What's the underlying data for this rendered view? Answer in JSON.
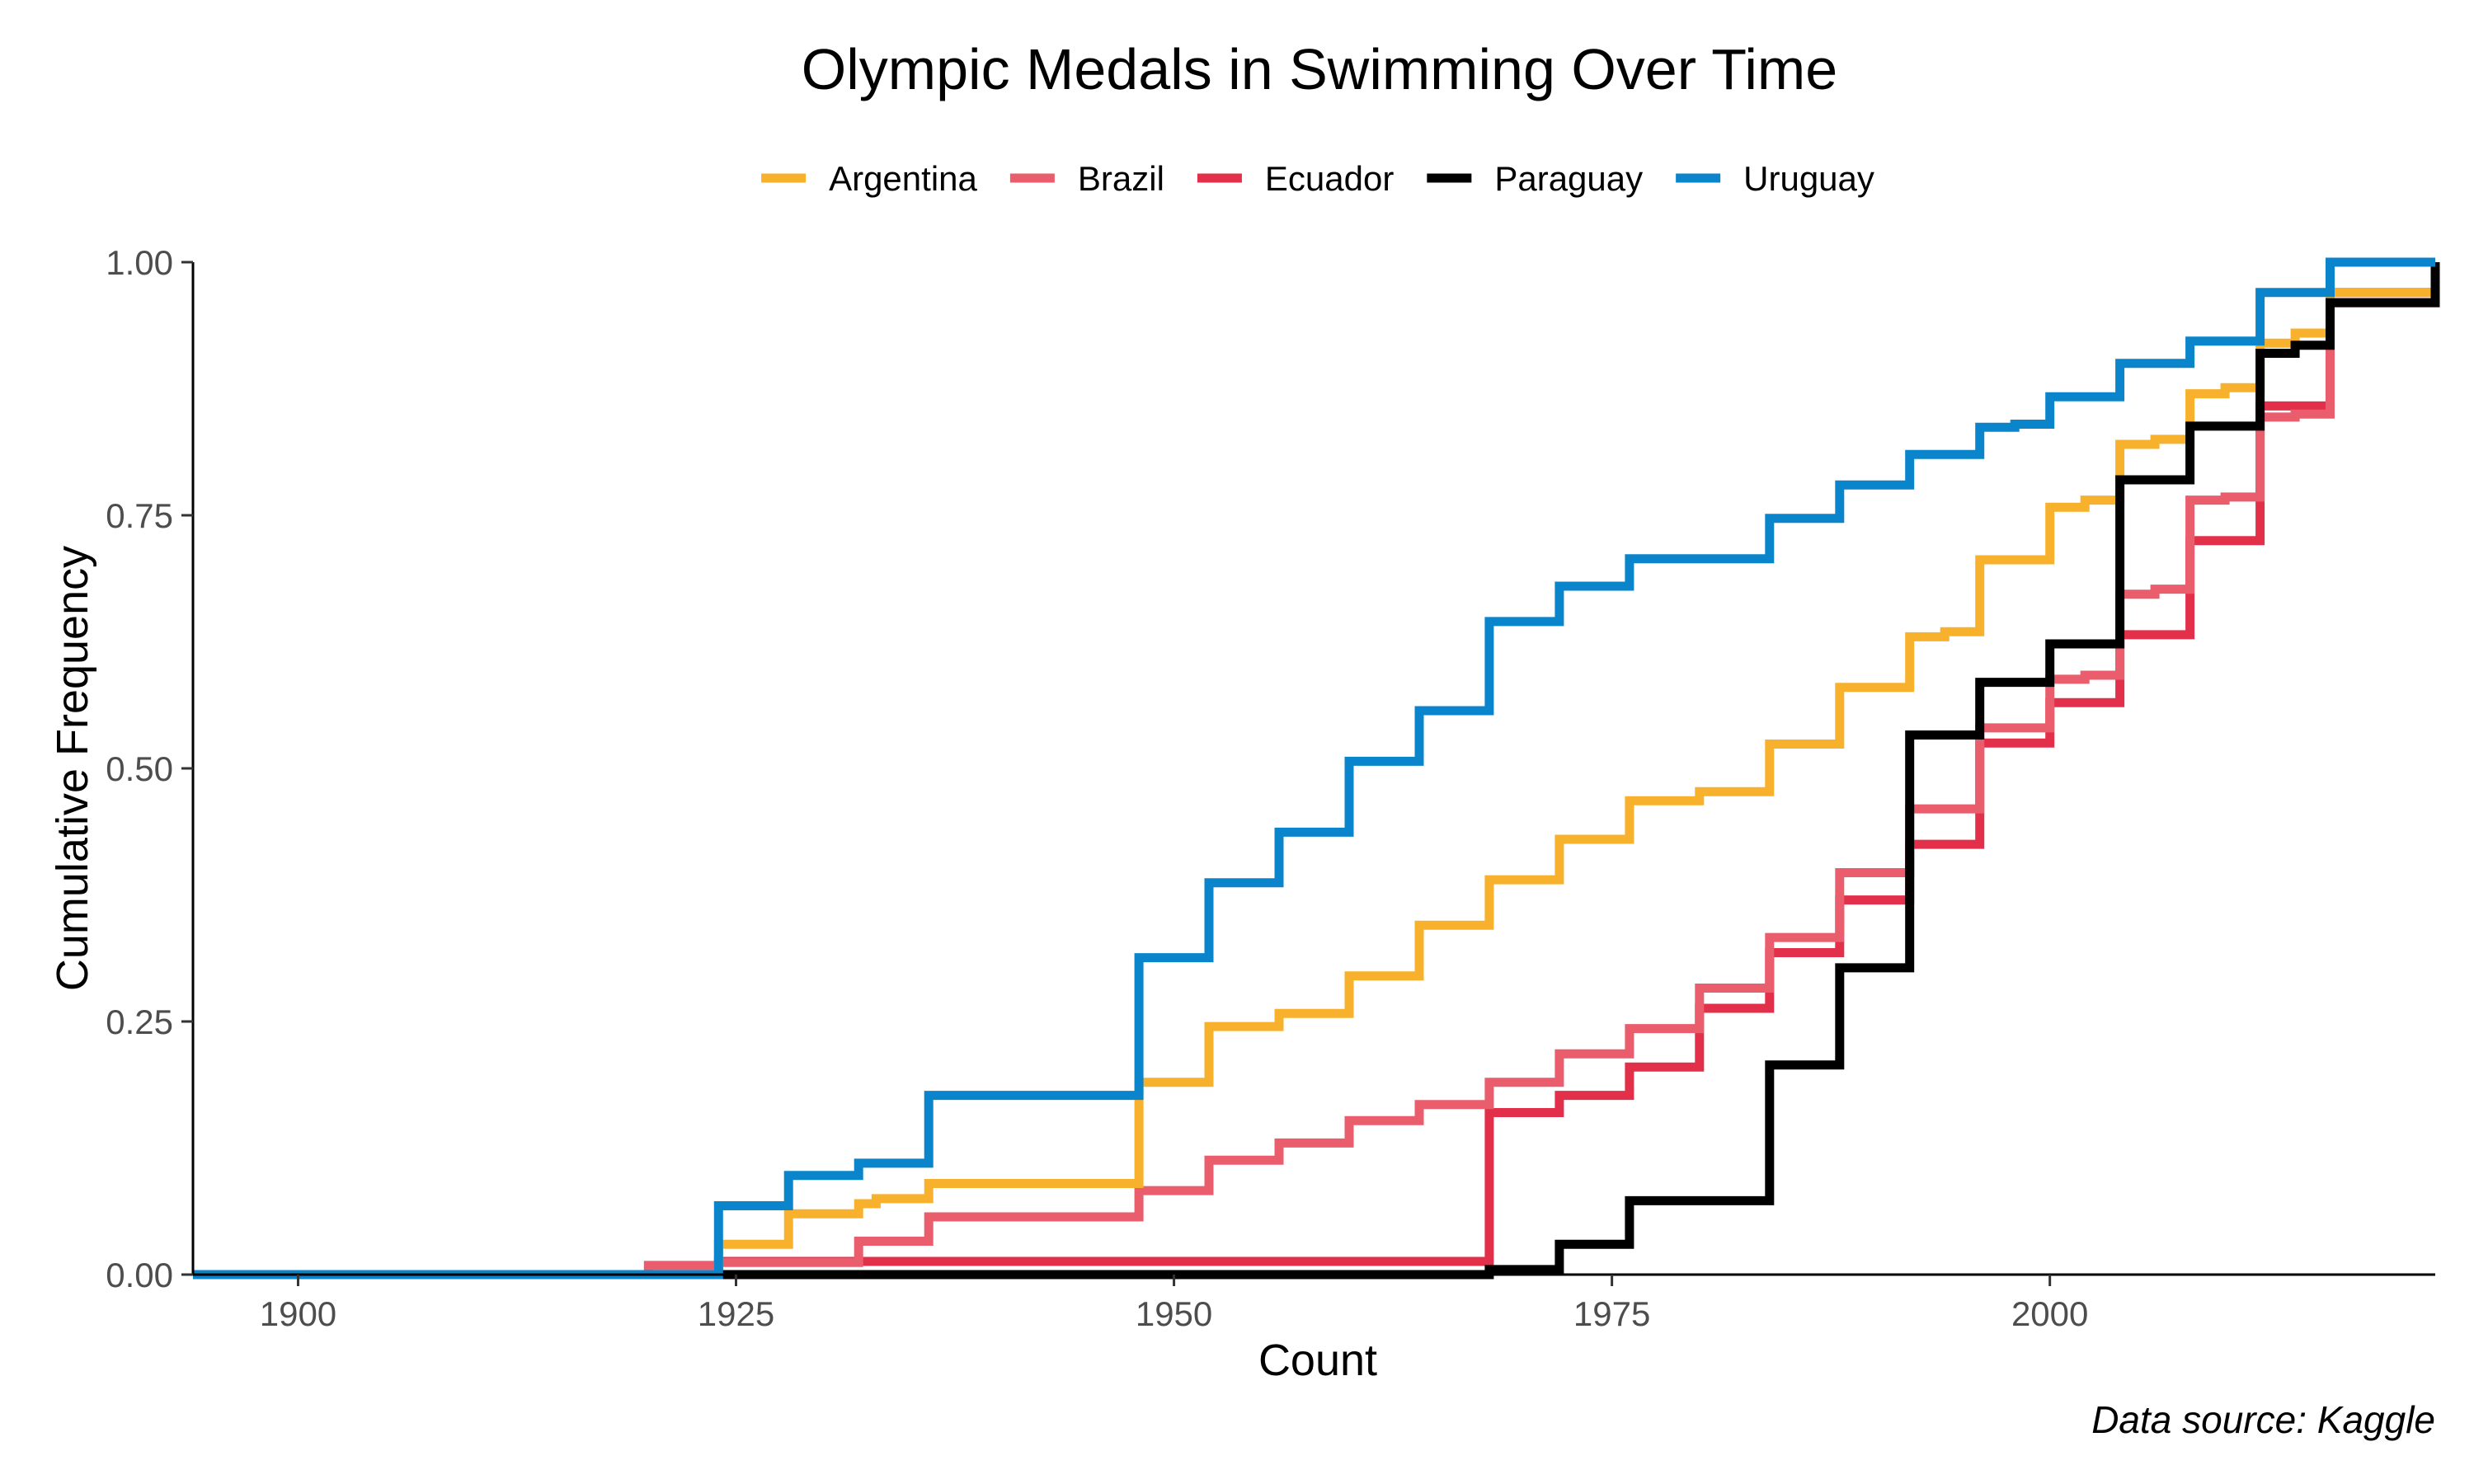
{
  "chart_data": {
    "type": "line",
    "step": true,
    "title": "Olympic Medals in Swimming Over Time",
    "xlabel": "Count",
    "ylabel": "Cumulative Frequency",
    "caption": "Data source: Kaggle",
    "xlim": [
      1894,
      2022
    ],
    "ylim": [
      0,
      1
    ],
    "x_ticks": [
      1900,
      1925,
      1950,
      1975,
      2000
    ],
    "x_tick_labels": [
      "1900",
      "1925",
      "1950",
      "1975",
      "2000"
    ],
    "y_ticks": [
      0,
      0.25,
      0.5,
      0.75,
      1
    ],
    "y_tick_labels": [
      "0.00",
      "0.25",
      "0.50",
      "0.75",
      "1.00"
    ],
    "grid": false,
    "legend_position": "top",
    "series": [
      {
        "name": "Argentina",
        "color": "#F8B12C",
        "points": [
          [
            1894,
            0
          ],
          [
            1924,
            0.03
          ],
          [
            1928,
            0.06
          ],
          [
            1932,
            0.07
          ],
          [
            1933,
            0.075
          ],
          [
            1936,
            0.09
          ],
          [
            1948,
            0.19
          ],
          [
            1952,
            0.245
          ],
          [
            1956,
            0.258
          ],
          [
            1960,
            0.295
          ],
          [
            1964,
            0.345
          ],
          [
            1968,
            0.39
          ],
          [
            1972,
            0.43
          ],
          [
            1976,
            0.468
          ],
          [
            1980,
            0.477
          ],
          [
            1984,
            0.524
          ],
          [
            1988,
            0.58
          ],
          [
            1992,
            0.63
          ],
          [
            1994,
            0.635
          ],
          [
            1996,
            0.706
          ],
          [
            2000,
            0.758
          ],
          [
            2002,
            0.765
          ],
          [
            2004,
            0.82
          ],
          [
            2006,
            0.825
          ],
          [
            2008,
            0.87
          ],
          [
            2010,
            0.876
          ],
          [
            2012,
            0.92
          ],
          [
            2014,
            0.93
          ],
          [
            2016,
            0.97
          ],
          [
            2022,
            1.0
          ]
        ]
      },
      {
        "name": "Brazil",
        "color": "#EA5D6D",
        "points": [
          [
            1894,
            0
          ],
          [
            1920,
            0.009
          ],
          [
            1924,
            0.012
          ],
          [
            1932,
            0.033
          ],
          [
            1936,
            0.057
          ],
          [
            1948,
            0.083
          ],
          [
            1952,
            0.113
          ],
          [
            1956,
            0.13
          ],
          [
            1960,
            0.152
          ],
          [
            1964,
            0.168
          ],
          [
            1968,
            0.19
          ],
          [
            1972,
            0.218
          ],
          [
            1976,
            0.243
          ],
          [
            1980,
            0.283
          ],
          [
            1984,
            0.333
          ],
          [
            1988,
            0.397
          ],
          [
            1992,
            0.46
          ],
          [
            1996,
            0.54
          ],
          [
            2000,
            0.588
          ],
          [
            2002,
            0.592
          ],
          [
            2004,
            0.672
          ],
          [
            2006,
            0.677
          ],
          [
            2008,
            0.765
          ],
          [
            2010,
            0.768
          ],
          [
            2012,
            0.847
          ],
          [
            2014,
            0.85
          ],
          [
            2016,
            0.96
          ],
          [
            2022,
            1.0
          ]
        ]
      },
      {
        "name": "Ecuador",
        "color": "#E3304A",
        "points": [
          [
            1894,
            0
          ],
          [
            1924,
            0.013
          ],
          [
            1968,
            0.16
          ],
          [
            1972,
            0.177
          ],
          [
            1976,
            0.205
          ],
          [
            1980,
            0.263
          ],
          [
            1984,
            0.318
          ],
          [
            1988,
            0.37
          ],
          [
            1992,
            0.425
          ],
          [
            1996,
            0.525
          ],
          [
            2000,
            0.565
          ],
          [
            2004,
            0.632
          ],
          [
            2008,
            0.725
          ],
          [
            2012,
            0.858
          ],
          [
            2016,
            0.97
          ],
          [
            2022,
            1.0
          ]
        ]
      },
      {
        "name": "Paraguay",
        "color": "#000000",
        "points": [
          [
            1894,
            0
          ],
          [
            1968,
            0.005
          ],
          [
            1972,
            0.03
          ],
          [
            1976,
            0.073
          ],
          [
            1984,
            0.207
          ],
          [
            1988,
            0.303
          ],
          [
            1992,
            0.533
          ],
          [
            1996,
            0.585
          ],
          [
            2000,
            0.623
          ],
          [
            2004,
            0.785
          ],
          [
            2008,
            0.838
          ],
          [
            2012,
            0.91
          ],
          [
            2014,
            0.918
          ],
          [
            2016,
            0.96
          ],
          [
            2022,
            1.0
          ]
        ]
      },
      {
        "name": "Uruguay",
        "color": "#0A85CC",
        "points": [
          [
            1894,
            0
          ],
          [
            1924,
            0.068
          ],
          [
            1928,
            0.098
          ],
          [
            1932,
            0.11
          ],
          [
            1936,
            0.177
          ],
          [
            1948,
            0.313
          ],
          [
            1952,
            0.387
          ],
          [
            1956,
            0.437
          ],
          [
            1960,
            0.507
          ],
          [
            1964,
            0.557
          ],
          [
            1968,
            0.645
          ],
          [
            1972,
            0.68
          ],
          [
            1976,
            0.707
          ],
          [
            1984,
            0.747
          ],
          [
            1988,
            0.78
          ],
          [
            1992,
            0.81
          ],
          [
            1996,
            0.837
          ],
          [
            1998,
            0.84
          ],
          [
            2000,
            0.867
          ],
          [
            2004,
            0.9
          ],
          [
            2008,
            0.922
          ],
          [
            2012,
            0.97
          ],
          [
            2016,
            1.0
          ],
          [
            2022,
            1.0
          ]
        ]
      }
    ]
  }
}
